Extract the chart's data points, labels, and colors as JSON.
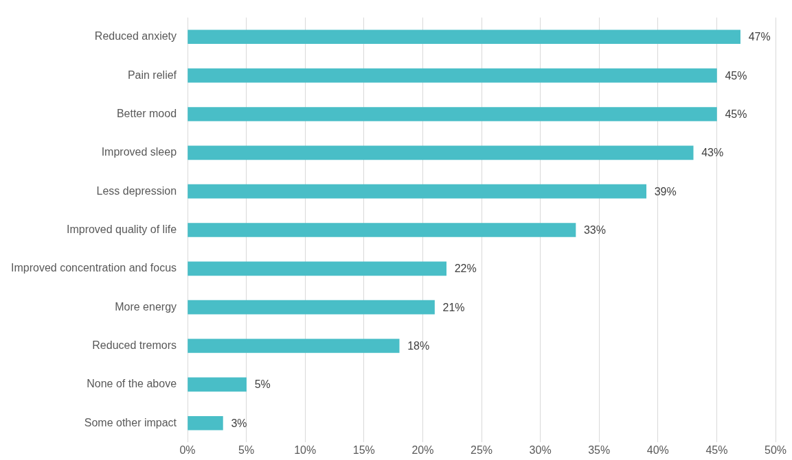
{
  "chart_data": {
    "type": "bar",
    "orientation": "horizontal",
    "categories": [
      "Reduced anxiety",
      "Pain relief",
      "Better mood",
      "Improved sleep",
      "Less depression",
      "Improved quality of life",
      "Improved concentration and focus",
      "More energy",
      "Reduced tremors",
      "None of the above",
      "Some other impact"
    ],
    "series": [
      {
        "color": "#49bec7",
        "values": [
          47,
          45,
          45,
          43,
          39,
          33,
          22,
          21,
          18,
          5,
          3
        ],
        "value_labels": [
          "47%",
          "45%",
          "45%",
          "43%",
          "39%",
          "33%",
          "22%",
          "21%",
          "18%",
          "5%",
          "3%"
        ]
      }
    ],
    "xlim": [
      0,
      50
    ],
    "xticks": [
      {
        "value": 0,
        "label": "0%"
      },
      {
        "value": 5,
        "label": "5%"
      },
      {
        "value": 10,
        "label": "10%"
      },
      {
        "value": 15,
        "label": "15%"
      },
      {
        "value": 20,
        "label": "20%"
      },
      {
        "value": 25,
        "label": "25%"
      },
      {
        "value": 30,
        "label": "30%"
      },
      {
        "value": 35,
        "label": "35%"
      },
      {
        "value": 40,
        "label": "40%"
      },
      {
        "value": 45,
        "label": "45%"
      },
      {
        "value": 50,
        "label": "50%"
      }
    ],
    "grid": "x",
    "legend": false
  }
}
